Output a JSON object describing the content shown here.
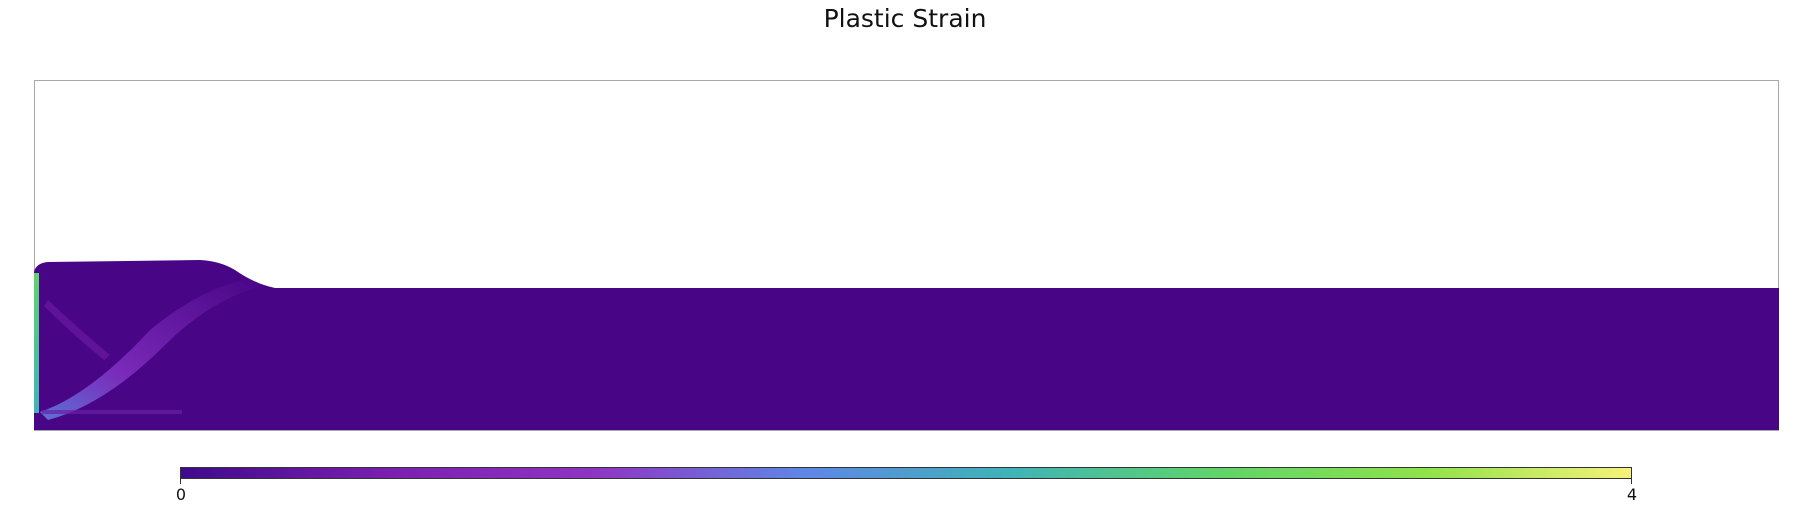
{
  "chart_data": {
    "type": "heatmap",
    "title": "Plastic Strain",
    "field": "Plastic Strain",
    "colormap": "plasma-like (purple → blue → green → yellow)",
    "colorbar": {
      "min": 0,
      "max": 4,
      "tick_labels": [
        "0",
        "4"
      ],
      "colors": [
        "#3f0a8c",
        "#7a1fb0",
        "#8f35c4",
        "#5f86e6",
        "#3fb3b8",
        "#5fd46a",
        "#8fe24a",
        "#f6f27a"
      ]
    },
    "background_strain_color": "#480586",
    "grid": false
  }
}
